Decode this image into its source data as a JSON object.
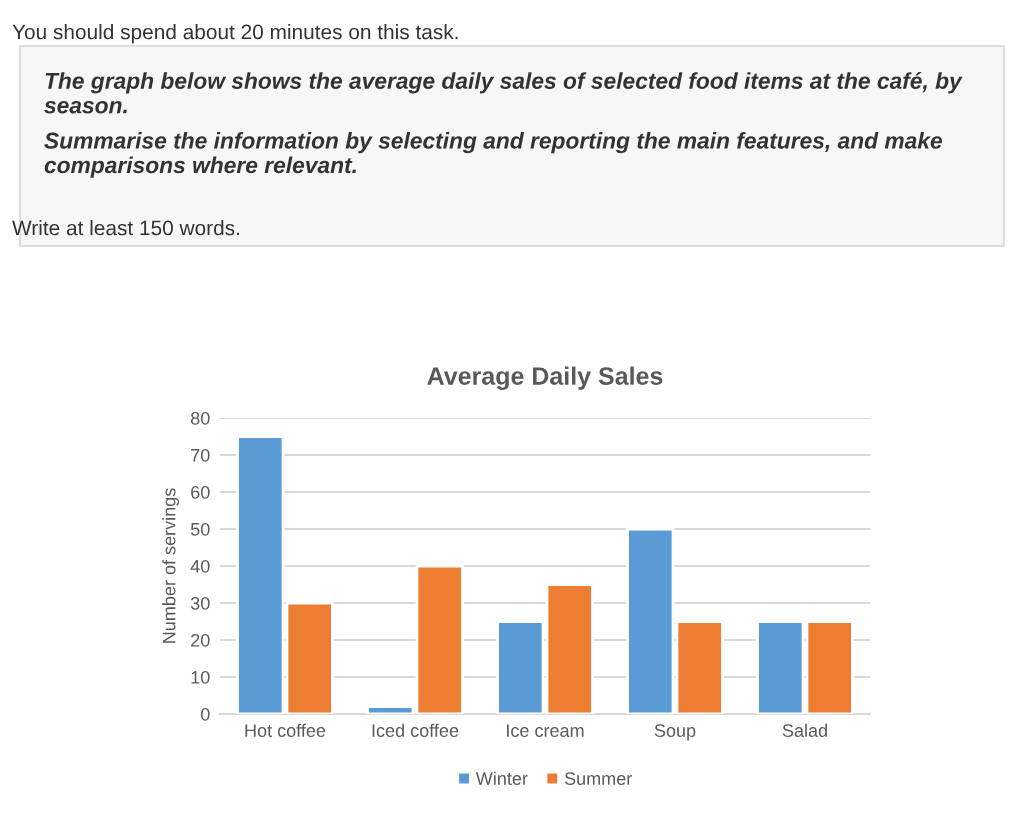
{
  "chart_data": {
    "type": "bar",
    "title": "Average Daily Sales",
    "ylabel": "Number of servings",
    "annotations": [
      "You should spend about 20 minutes on this task.",
      "The graph below shows the average daily sales of selected food items at the café, by season.",
      "Summarise the information by selecting and reporting the main features, and make comparisons where relevant.",
      "Write at least 150 words."
    ],
    "categories": [
      "Hot coffee",
      "Iced coffee",
      "Ice cream",
      "Soup",
      "Salad"
    ],
    "series": [
      {
        "name": "Winter",
        "color": "#5b9bd5",
        "values": [
          75,
          2,
          25,
          50,
          25
        ]
      },
      {
        "name": "Summer",
        "color": "#ed7d31",
        "values": [
          30,
          40,
          35,
          25,
          25
        ]
      }
    ],
    "ylim": [
      0,
      80
    ],
    "yticks": [
      0,
      10,
      20,
      30,
      40,
      50,
      60,
      70,
      80
    ],
    "grid": "y",
    "legend": "bottom"
  }
}
